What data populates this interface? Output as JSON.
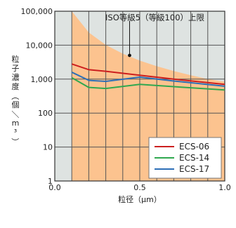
{
  "chart_data": {
    "type": "line",
    "title": "",
    "xlabel": "粒径（μm）",
    "ylabel": "粒子濃度（個／m³）",
    "xlim": [
      0,
      1.0
    ],
    "ylim": [
      1,
      100000
    ],
    "y_scale": "log",
    "grid": true,
    "x_ticks": [
      "0.0",
      "0.5",
      "1.0"
    ],
    "y_ticks": [
      "1",
      "10",
      "100",
      "1,000",
      "10,000",
      "100,000"
    ],
    "limit_region": {
      "label": "ISO等級5（等級100）上限",
      "x": [
        0.1,
        0.2,
        0.3,
        0.4,
        0.5,
        0.6,
        0.7,
        0.8,
        0.9,
        1.0
      ],
      "values": [
        100000,
        23700,
        10200,
        5610,
        3520,
        2400,
        1730,
        1300,
        1010,
        832
      ]
    },
    "series": [
      {
        "name": "ECS-06",
        "color": "#cc1f1f",
        "x": [
          0.1,
          0.2,
          0.3,
          0.5,
          0.7,
          1.0
        ],
        "values": [
          2800,
          1900,
          1700,
          1300,
          1000,
          700
        ]
      },
      {
        "name": "ECS-14",
        "color": "#2fa84f",
        "x": [
          0.1,
          0.2,
          0.3,
          0.5,
          0.7,
          1.0
        ],
        "values": [
          1100,
          570,
          530,
          700,
          600,
          480
        ]
      },
      {
        "name": "ECS-17",
        "color": "#2c6fb7",
        "x": [
          0.1,
          0.2,
          0.3,
          0.5,
          0.7,
          1.0
        ],
        "values": [
          1600,
          920,
          860,
          1150,
          880,
          620
        ]
      }
    ],
    "legend_position": "bottom-right"
  }
}
